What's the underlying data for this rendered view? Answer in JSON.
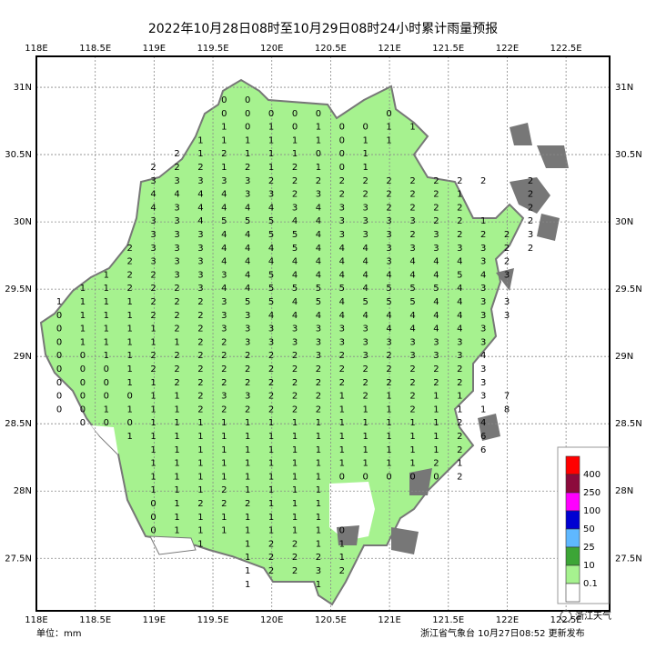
{
  "map": {
    "title": "2022年10月28日08时至10月29日08时24小时累计雨量预报",
    "xlim": [
      118,
      122.87
    ],
    "ylim": [
      27.11,
      31.23
    ],
    "lon_ticks": [
      {
        "value": 118,
        "label": "118E"
      },
      {
        "value": 118.5,
        "label": "118.5E"
      },
      {
        "value": 119,
        "label": "119E"
      },
      {
        "value": 119.5,
        "label": "119.5E"
      },
      {
        "value": 120,
        "label": "120E"
      },
      {
        "value": 120.5,
        "label": "120.5E"
      },
      {
        "value": 121,
        "label": "121E"
      },
      {
        "value": 121.5,
        "label": "121.5E"
      },
      {
        "value": 122,
        "label": "122E"
      },
      {
        "value": 122.5,
        "label": "122.5E"
      }
    ],
    "lat_ticks": [
      {
        "value": 27.5,
        "label": "27.5N"
      },
      {
        "value": 28,
        "label": "28N"
      },
      {
        "value": 28.5,
        "label": "28.5N"
      },
      {
        "value": 29,
        "label": "29N"
      },
      {
        "value": 29.5,
        "label": "29.5N"
      },
      {
        "value": 30,
        "label": "30N"
      },
      {
        "value": 30.5,
        "label": "30.5N"
      },
      {
        "value": 31,
        "label": "31N"
      }
    ],
    "grid": [
      [
        null,
        null,
        null,
        null,
        null,
        null,
        null,
        0,
        0
      ],
      [
        null,
        null,
        null,
        null,
        null,
        null,
        null,
        0,
        0,
        0,
        0,
        0,
        null,
        null,
        0
      ],
      [
        null,
        null,
        null,
        null,
        null,
        null,
        null,
        1,
        0,
        1,
        0,
        1,
        0,
        0,
        1,
        1
      ],
      [
        null,
        null,
        null,
        null,
        null,
        null,
        1,
        1,
        1,
        1,
        1,
        1,
        0,
        1,
        1
      ],
      [
        null,
        null,
        null,
        null,
        null,
        2,
        1,
        2,
        1,
        1,
        1,
        0,
        0,
        1
      ],
      [
        null,
        null,
        null,
        null,
        2,
        2,
        2,
        1,
        2,
        1,
        2,
        1,
        0,
        1
      ],
      [
        null,
        null,
        null,
        null,
        3,
        3,
        3,
        3,
        3,
        2,
        2,
        2,
        2,
        2,
        2,
        2,
        2,
        2,
        2,
        null,
        2
      ],
      [
        null,
        null,
        null,
        null,
        4,
        4,
        4,
        4,
        3,
        3,
        2,
        3,
        2,
        2,
        2,
        2,
        2,
        1,
        null,
        null,
        2
      ],
      [
        null,
        null,
        null,
        null,
        4,
        3,
        4,
        4,
        4,
        4,
        3,
        4,
        3,
        3,
        2,
        2,
        2,
        2,
        null,
        null,
        2
      ],
      [
        null,
        null,
        null,
        null,
        3,
        3,
        4,
        5,
        5,
        5,
        4,
        4,
        3,
        3,
        3,
        3,
        2,
        2,
        1,
        null,
        2
      ],
      [
        null,
        null,
        null,
        null,
        3,
        3,
        3,
        4,
        4,
        5,
        5,
        4,
        3,
        3,
        3,
        2,
        3,
        2,
        2,
        2,
        3
      ],
      [
        null,
        null,
        null,
        2,
        3,
        3,
        3,
        4,
        4,
        4,
        5,
        4,
        4,
        4,
        3,
        3,
        3,
        3,
        3,
        2,
        2
      ],
      [
        null,
        null,
        null,
        2,
        3,
        3,
        3,
        4,
        4,
        4,
        4,
        4,
        4,
        4,
        3,
        4,
        4,
        4,
        3,
        2
      ],
      [
        null,
        null,
        1,
        2,
        2,
        3,
        3,
        3,
        4,
        5,
        4,
        4,
        4,
        4,
        4,
        4,
        4,
        5,
        4,
        3
      ],
      [
        null,
        1,
        1,
        2,
        2,
        2,
        3,
        4,
        4,
        5,
        5,
        5,
        5,
        4,
        5,
        5,
        5,
        4,
        3
      ],
      [
        1,
        1,
        1,
        1,
        2,
        2,
        2,
        3,
        5,
        5,
        4,
        5,
        4,
        5,
        5,
        5,
        4,
        4,
        3,
        3
      ],
      [
        0,
        1,
        1,
        1,
        2,
        2,
        2,
        3,
        3,
        4,
        4,
        4,
        4,
        4,
        4,
        4,
        4,
        4,
        3,
        3
      ],
      [
        0,
        1,
        1,
        1,
        1,
        2,
        2,
        3,
        3,
        3,
        3,
        3,
        3,
        3,
        4,
        4,
        4,
        4,
        3
      ],
      [
        0,
        1,
        1,
        1,
        1,
        1,
        2,
        2,
        3,
        3,
        3,
        3,
        3,
        3,
        3,
        3,
        3,
        3,
        3
      ],
      [
        0,
        0,
        1,
        1,
        2,
        2,
        2,
        2,
        2,
        2,
        2,
        3,
        2,
        3,
        2,
        3,
        3,
        3,
        4
      ],
      [
        0,
        0,
        0,
        1,
        2,
        2,
        2,
        2,
        2,
        2,
        2,
        2,
        2,
        2,
        2,
        2,
        2,
        2,
        3
      ],
      [
        0,
        0,
        0,
        1,
        1,
        2,
        2,
        2,
        2,
        2,
        2,
        2,
        2,
        2,
        2,
        2,
        2,
        2,
        3
      ],
      [
        0,
        0,
        0,
        0,
        1,
        1,
        2,
        3,
        3,
        2,
        2,
        2,
        1,
        2,
        1,
        2,
        1,
        1,
        3,
        7
      ],
      [
        0,
        0,
        1,
        1,
        1,
        1,
        2,
        2,
        2,
        2,
        2,
        2,
        1,
        1,
        1,
        2,
        1,
        1,
        1,
        8
      ],
      [
        null,
        0,
        0,
        0,
        1,
        1,
        1,
        1,
        1,
        1,
        1,
        1,
        1,
        1,
        1,
        1,
        1,
        2,
        4
      ],
      [
        null,
        null,
        null,
        1,
        1,
        1,
        1,
        1,
        1,
        1,
        1,
        1,
        1,
        1,
        1,
        1,
        1,
        2,
        6
      ],
      [
        null,
        null,
        null,
        null,
        1,
        1,
        1,
        1,
        1,
        1,
        1,
        1,
        1,
        1,
        1,
        1,
        1,
        2,
        6
      ],
      [
        null,
        null,
        null,
        null,
        1,
        1,
        1,
        1,
        1,
        1,
        1,
        1,
        1,
        1,
        1,
        1,
        2,
        1
      ],
      [
        null,
        null,
        null,
        null,
        1,
        1,
        1,
        1,
        1,
        1,
        1,
        1,
        0,
        0,
        0,
        0,
        0,
        2
      ],
      [
        null,
        null,
        null,
        null,
        1,
        1,
        1,
        2,
        1,
        1,
        1,
        1
      ],
      [
        null,
        null,
        null,
        null,
        0,
        1,
        2,
        2,
        2,
        1,
        1,
        1
      ],
      [
        null,
        null,
        null,
        null,
        0,
        1,
        1,
        1,
        1,
        1,
        1,
        1
      ],
      [
        null,
        null,
        null,
        null,
        0,
        1,
        1,
        1,
        1,
        1,
        1,
        1,
        0
      ],
      [
        null,
        null,
        null,
        null,
        null,
        null,
        1,
        null,
        1,
        2,
        2,
        1,
        1
      ],
      [
        null,
        null,
        null,
        null,
        null,
        null,
        null,
        null,
        1,
        2,
        2,
        2,
        1
      ],
      [
        null,
        null,
        null,
        null,
        null,
        null,
        null,
        null,
        1,
        2,
        2,
        3,
        2
      ],
      [
        null,
        null,
        null,
        null,
        null,
        null,
        null,
        null,
        1,
        null,
        null,
        1
      ]
    ],
    "legend": {
      "levels": [
        400,
        250,
        100,
        50,
        25,
        10,
        0.1
      ],
      "colors": [
        "#ff0000",
        "#8c0a3c",
        "#ff00ff",
        "#0000d2",
        "#5fb8ff",
        "#3ca536",
        "#a6f28f",
        "#ffffff"
      ]
    },
    "unit": "单位：mm",
    "footer": "浙江省气象台 10月27日08:52 更新发布",
    "watermark": "浙江天气"
  }
}
